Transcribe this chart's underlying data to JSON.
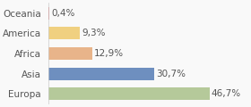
{
  "categories": [
    "Oceania",
    "America",
    "Africa",
    "Asia",
    "Europa"
  ],
  "values": [
    0.4,
    9.3,
    12.9,
    30.7,
    46.7
  ],
  "labels": [
    "0,4%",
    "9,3%",
    "12,9%",
    "30,7%",
    "46,7%"
  ],
  "bar_colors": [
    "#e07070",
    "#f0d080",
    "#e8b48a",
    "#6e8fbf",
    "#b5c99a"
  ],
  "background_color": "#f9f9f9",
  "label_fontsize": 7.5,
  "tick_fontsize": 7.5,
  "xlim": [
    0,
    58
  ]
}
